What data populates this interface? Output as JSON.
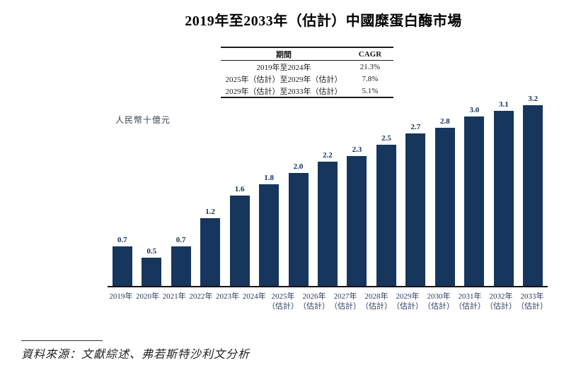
{
  "title": "2019年至2033年（估計）中國糜蛋白酶市場",
  "table": {
    "headers": [
      "期間",
      "CAGR"
    ],
    "rows": [
      {
        "period": "2019年至2024年",
        "cagr": "21.3%"
      },
      {
        "period": "2025年（估計）至2029年（估計）",
        "cagr": "7.8%"
      },
      {
        "period": "2029年（估計）至2033年（估計）",
        "cagr": "5.1%"
      }
    ]
  },
  "chart_data": {
    "type": "bar",
    "title": "2019年至2033年（估計）中國糜蛋白酶市場",
    "ylabel": "人民幣十億元",
    "xlabel": "",
    "categories": [
      "2019年",
      "2020年",
      "2021年",
      "2022年",
      "2023年",
      "2024年",
      "2025年（估計）",
      "2026年（估計）",
      "2027年（估計）",
      "2028年（估計）",
      "2029年（估計）",
      "2030年（估計）",
      "2031年（估計）",
      "2032年（估計）",
      "2033年（估計）"
    ],
    "values": [
      0.7,
      0.5,
      0.7,
      1.2,
      1.6,
      1.8,
      2.0,
      2.2,
      2.3,
      2.5,
      2.7,
      2.8,
      3.0,
      3.1,
      3.2
    ],
    "ylim": [
      0,
      3.4
    ],
    "grid": false,
    "legend": "none",
    "bar_color": "#17365d",
    "estimated_note": "（估計）"
  },
  "source": "資料來源：文獻綜述、弗若斯特沙利文分析"
}
